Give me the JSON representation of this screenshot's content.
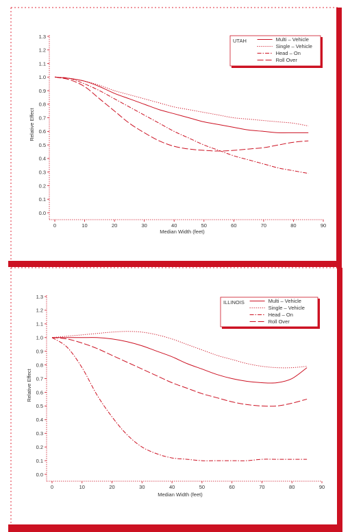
{
  "theme": {
    "accent": "#cc1122",
    "line": "#cc1122",
    "text": "#333333",
    "background": "#ffffff"
  },
  "chart_data": [
    {
      "type": "line",
      "title": "UTAH",
      "xlabel": "Median Width (feet)",
      "ylabel": "Relative Effect",
      "xlim": [
        0,
        90
      ],
      "ylim": [
        0,
        1.3
      ],
      "xticks": [
        "0",
        "10",
        "20",
        "30",
        "40",
        "50",
        "60",
        "70",
        "80",
        "90"
      ],
      "yticks": [
        "0.0",
        "0.1",
        "0.2",
        "0.3",
        "0.4",
        "0.5",
        "0.6",
        "0.7",
        "0.8",
        "0.9",
        "1.0",
        "1.1",
        "1.2",
        "1.3"
      ],
      "grid": false,
      "legend_position": "top-right",
      "series": [
        {
          "name": "Multi – Vehicle",
          "dash": "solid",
          "x": [
            0,
            5,
            10,
            15,
            20,
            25,
            30,
            35,
            40,
            45,
            50,
            55,
            60,
            65,
            70,
            75,
            80,
            85
          ],
          "y": [
            1.0,
            0.99,
            0.97,
            0.93,
            0.88,
            0.84,
            0.8,
            0.76,
            0.73,
            0.7,
            0.67,
            0.65,
            0.63,
            0.61,
            0.6,
            0.59,
            0.59,
            0.59
          ]
        },
        {
          "name": "Single – Vehicle",
          "dash": "dotted",
          "x": [
            0,
            5,
            10,
            15,
            20,
            25,
            30,
            35,
            40,
            45,
            50,
            55,
            60,
            65,
            70,
            75,
            80,
            85
          ],
          "y": [
            1.0,
            0.99,
            0.97,
            0.94,
            0.9,
            0.87,
            0.84,
            0.81,
            0.78,
            0.76,
            0.74,
            0.72,
            0.7,
            0.69,
            0.68,
            0.67,
            0.66,
            0.64
          ]
        },
        {
          "name": "Head – On",
          "dash": "dashdot",
          "x": [
            0,
            5,
            10,
            15,
            20,
            25,
            30,
            35,
            40,
            45,
            50,
            55,
            60,
            65,
            70,
            75,
            80,
            85
          ],
          "y": [
            1.0,
            0.99,
            0.95,
            0.9,
            0.84,
            0.78,
            0.72,
            0.66,
            0.6,
            0.55,
            0.5,
            0.46,
            0.42,
            0.39,
            0.36,
            0.33,
            0.31,
            0.29
          ]
        },
        {
          "name": "Roll Over",
          "dash": "longdash",
          "x": [
            0,
            5,
            10,
            15,
            20,
            25,
            30,
            35,
            40,
            45,
            50,
            55,
            60,
            65,
            70,
            75,
            80,
            85
          ],
          "y": [
            1.0,
            0.98,
            0.93,
            0.84,
            0.75,
            0.66,
            0.59,
            0.53,
            0.49,
            0.47,
            0.46,
            0.455,
            0.46,
            0.47,
            0.48,
            0.5,
            0.52,
            0.53
          ]
        }
      ]
    },
    {
      "type": "line",
      "title": "ILLINOIS",
      "xlabel": "Median Width (feet)",
      "ylabel": "Relative Effect",
      "xlim": [
        0,
        90
      ],
      "ylim": [
        0,
        1.3
      ],
      "xticks": [
        "0",
        "10",
        "20",
        "30",
        "40",
        "50",
        "60",
        "70",
        "80",
        "90"
      ],
      "yticks": [
        "0.0",
        "0.1",
        "0.2",
        "0.3",
        "0.4",
        "0.5",
        "0.6",
        "0.7",
        "0.8",
        "0.9",
        "1.0",
        "1.1",
        "1.2",
        "1.3"
      ],
      "grid": false,
      "legend_position": "top-right",
      "series": [
        {
          "name": "Multi – Vehicle",
          "dash": "solid",
          "x": [
            0,
            5,
            10,
            15,
            20,
            25,
            30,
            35,
            40,
            45,
            50,
            55,
            60,
            65,
            70,
            75,
            80,
            85
          ],
          "y": [
            1.0,
            1.0,
            1.0,
            1.0,
            0.99,
            0.97,
            0.94,
            0.9,
            0.86,
            0.81,
            0.77,
            0.73,
            0.7,
            0.68,
            0.67,
            0.67,
            0.7,
            0.78
          ]
        },
        {
          "name": "Single – Vehicle",
          "dash": "dotted",
          "x": [
            0,
            5,
            10,
            15,
            20,
            25,
            30,
            35,
            40,
            45,
            50,
            55,
            60,
            65,
            70,
            75,
            80,
            85
          ],
          "y": [
            1.0,
            1.01,
            1.02,
            1.03,
            1.04,
            1.045,
            1.04,
            1.02,
            0.99,
            0.95,
            0.91,
            0.87,
            0.84,
            0.81,
            0.79,
            0.78,
            0.78,
            0.79
          ]
        },
        {
          "name": "Head – On",
          "dash": "dashdot",
          "x": [
            0,
            5,
            10,
            15,
            20,
            25,
            30,
            35,
            40,
            45,
            50,
            55,
            60,
            65,
            70,
            75,
            80,
            85
          ],
          "y": [
            1.0,
            0.93,
            0.78,
            0.58,
            0.42,
            0.29,
            0.2,
            0.15,
            0.12,
            0.11,
            0.1,
            0.1,
            0.1,
            0.1,
            0.11,
            0.11,
            0.11,
            0.11
          ]
        },
        {
          "name": "Roll Over",
          "dash": "longdash",
          "x": [
            0,
            5,
            10,
            15,
            20,
            25,
            30,
            35,
            40,
            45,
            50,
            55,
            60,
            65,
            70,
            75,
            80,
            85
          ],
          "y": [
            1.0,
            0.99,
            0.96,
            0.92,
            0.87,
            0.82,
            0.77,
            0.72,
            0.67,
            0.63,
            0.59,
            0.56,
            0.53,
            0.51,
            0.5,
            0.5,
            0.52,
            0.55
          ]
        }
      ]
    }
  ]
}
